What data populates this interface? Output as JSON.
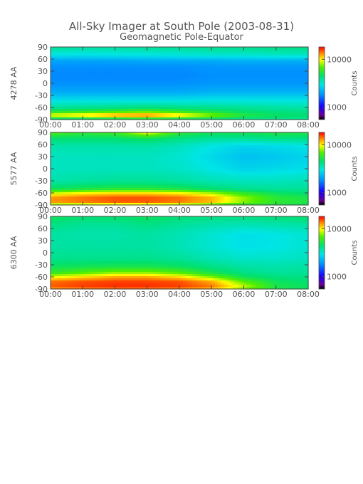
{
  "title": "All-Sky Imager at South Pole (2003-08-31)",
  "subtitle": "Geomagnetic Pole-Equator",
  "chart_data": [
    {
      "type": "heatmap",
      "ylabel": "4278 AA",
      "colorbar_label": "Counts",
      "colorbar_ticks": [
        "10000",
        "1000"
      ],
      "colorbar_scale": "log",
      "x_ticks": [
        "00:00",
        "01:00",
        "02:00",
        "03:00",
        "04:00",
        "05:00",
        "06:00",
        "07:00",
        "08:00"
      ],
      "xlim": [
        "00:00",
        "08:00"
      ],
      "y_ticks": [
        90,
        60,
        30,
        0,
        -30,
        -60,
        -90
      ],
      "ylim": [
        -90,
        90
      ],
      "rows": [
        {
          "lat": 85,
          "levels": [
            0.55,
            0.54,
            0.54,
            0.55,
            0.55,
            0.56,
            0.56,
            0.57,
            0.57
          ]
        },
        {
          "lat": 70,
          "levels": [
            0.48,
            0.47,
            0.48,
            0.48,
            0.49,
            0.5,
            0.5,
            0.51,
            0.51
          ]
        },
        {
          "lat": 55,
          "levels": [
            0.37,
            0.37,
            0.37,
            0.38,
            0.38,
            0.38,
            0.39,
            0.39,
            0.39
          ]
        },
        {
          "lat": 40,
          "levels": [
            0.34,
            0.34,
            0.34,
            0.34,
            0.34,
            0.35,
            0.35,
            0.35,
            0.35
          ]
        },
        {
          "lat": 20,
          "levels": [
            0.33,
            0.33,
            0.33,
            0.33,
            0.33,
            0.34,
            0.34,
            0.34,
            0.34
          ]
        },
        {
          "lat": 0,
          "levels": [
            0.34,
            0.34,
            0.34,
            0.34,
            0.34,
            0.35,
            0.35,
            0.35,
            0.35
          ]
        },
        {
          "lat": -20,
          "levels": [
            0.38,
            0.38,
            0.38,
            0.38,
            0.38,
            0.39,
            0.39,
            0.39,
            0.39
          ]
        },
        {
          "lat": -40,
          "levels": [
            0.46,
            0.46,
            0.46,
            0.46,
            0.46,
            0.47,
            0.47,
            0.47,
            0.47
          ]
        },
        {
          "lat": -60,
          "levels": [
            0.56,
            0.57,
            0.58,
            0.59,
            0.58,
            0.57,
            0.56,
            0.55,
            0.55
          ]
        },
        {
          "lat": -70,
          "levels": [
            0.64,
            0.66,
            0.68,
            0.7,
            0.67,
            0.63,
            0.6,
            0.58,
            0.57
          ]
        },
        {
          "lat": -80,
          "levels": [
            0.84,
            0.88,
            0.94,
            0.96,
            0.88,
            0.77,
            0.66,
            0.62,
            0.6
          ]
        },
        {
          "lat": -88,
          "levels": [
            0.6,
            0.6,
            0.62,
            0.64,
            0.62,
            0.6,
            0.58,
            0.57,
            0.57
          ]
        }
      ]
    },
    {
      "type": "heatmap",
      "ylabel": "5577 AA",
      "colorbar_label": "Counts",
      "colorbar_ticks": [
        "10000",
        "1000"
      ],
      "colorbar_scale": "log",
      "x_ticks": [
        "00:00",
        "01:00",
        "02:00",
        "03:00",
        "04:00",
        "05:00",
        "06:00",
        "07:00",
        "08:00"
      ],
      "xlim": [
        "00:00",
        "08:00"
      ],
      "y_ticks": [
        90,
        60,
        30,
        0,
        -30,
        -60,
        -90
      ],
      "ylim": [
        -90,
        90
      ],
      "rows": [
        {
          "lat": 88,
          "levels": [
            0.7,
            0.66,
            0.68,
            0.8,
            0.66,
            0.62,
            0.62,
            0.64,
            0.64
          ]
        },
        {
          "lat": 75,
          "levels": [
            0.6,
            0.6,
            0.6,
            0.62,
            0.58,
            0.56,
            0.56,
            0.58,
            0.58
          ]
        },
        {
          "lat": 55,
          "levels": [
            0.54,
            0.54,
            0.54,
            0.54,
            0.52,
            0.48,
            0.45,
            0.46,
            0.48
          ]
        },
        {
          "lat": 30,
          "levels": [
            0.52,
            0.52,
            0.52,
            0.52,
            0.5,
            0.46,
            0.42,
            0.43,
            0.45
          ]
        },
        {
          "lat": 0,
          "levels": [
            0.52,
            0.52,
            0.52,
            0.52,
            0.51,
            0.48,
            0.45,
            0.46,
            0.47
          ]
        },
        {
          "lat": -30,
          "levels": [
            0.54,
            0.55,
            0.56,
            0.56,
            0.55,
            0.53,
            0.52,
            0.52,
            0.53
          ]
        },
        {
          "lat": -50,
          "levels": [
            0.62,
            0.64,
            0.66,
            0.66,
            0.64,
            0.6,
            0.57,
            0.56,
            0.56
          ]
        },
        {
          "lat": -62,
          "levels": [
            0.8,
            0.84,
            0.86,
            0.86,
            0.84,
            0.78,
            0.68,
            0.62,
            0.6
          ]
        },
        {
          "lat": -72,
          "levels": [
            0.9,
            0.93,
            0.95,
            0.95,
            0.93,
            0.88,
            0.76,
            0.66,
            0.64
          ]
        },
        {
          "lat": -82,
          "levels": [
            0.9,
            0.92,
            0.94,
            0.94,
            0.92,
            0.87,
            0.75,
            0.67,
            0.64
          ]
        },
        {
          "lat": -90,
          "levels": [
            0.72,
            0.74,
            0.76,
            0.76,
            0.74,
            0.7,
            0.66,
            0.64,
            0.63
          ]
        }
      ]
    },
    {
      "type": "heatmap",
      "ylabel": "6300 AA",
      "colorbar_label": "Counts",
      "colorbar_ticks": [
        "10000",
        "1000"
      ],
      "colorbar_scale": "log",
      "x_ticks": [
        "00:00",
        "01:00",
        "02:00",
        "03:00",
        "04:00",
        "05:00",
        "06:00",
        "07:00",
        "08:00"
      ],
      "xlim": [
        "00:00",
        "08:00"
      ],
      "y_ticks": [
        90,
        60,
        30,
        0,
        -30,
        -60,
        -90
      ],
      "ylim": [
        -90,
        90
      ],
      "rows": [
        {
          "lat": 88,
          "levels": [
            0.62,
            0.6,
            0.6,
            0.62,
            0.59,
            0.58,
            0.58,
            0.59,
            0.6
          ]
        },
        {
          "lat": 70,
          "levels": [
            0.58,
            0.56,
            0.56,
            0.58,
            0.56,
            0.54,
            0.53,
            0.54,
            0.55
          ]
        },
        {
          "lat": 45,
          "levels": [
            0.55,
            0.54,
            0.54,
            0.55,
            0.53,
            0.5,
            0.47,
            0.48,
            0.5
          ]
        },
        {
          "lat": 15,
          "levels": [
            0.55,
            0.55,
            0.55,
            0.55,
            0.53,
            0.5,
            0.47,
            0.48,
            0.5
          ]
        },
        {
          "lat": -15,
          "levels": [
            0.57,
            0.57,
            0.57,
            0.57,
            0.56,
            0.53,
            0.51,
            0.51,
            0.52
          ]
        },
        {
          "lat": -35,
          "levels": [
            0.62,
            0.63,
            0.64,
            0.64,
            0.62,
            0.58,
            0.55,
            0.54,
            0.55
          ]
        },
        {
          "lat": -50,
          "levels": [
            0.68,
            0.72,
            0.76,
            0.76,
            0.72,
            0.64,
            0.58,
            0.56,
            0.56
          ]
        },
        {
          "lat": -62,
          "levels": [
            0.82,
            0.86,
            0.9,
            0.9,
            0.86,
            0.76,
            0.63,
            0.59,
            0.58
          ]
        },
        {
          "lat": -72,
          "levels": [
            0.93,
            0.95,
            0.96,
            0.96,
            0.95,
            0.89,
            0.72,
            0.62,
            0.6
          ]
        },
        {
          "lat": -82,
          "levels": [
            0.94,
            0.96,
            0.97,
            0.97,
            0.96,
            0.92,
            0.78,
            0.64,
            0.61
          ]
        },
        {
          "lat": -90,
          "levels": [
            0.9,
            0.92,
            0.93,
            0.93,
            0.92,
            0.88,
            0.75,
            0.64,
            0.61
          ]
        }
      ]
    }
  ]
}
